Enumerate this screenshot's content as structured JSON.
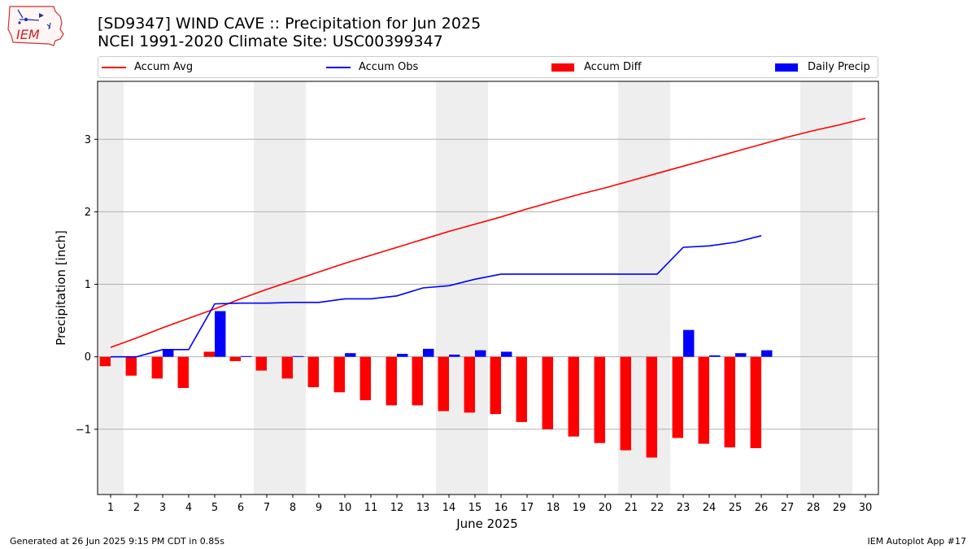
{
  "header": {
    "title_line1": "[SD9347] WIND CAVE :: Precipitation for Jun 2025",
    "title_line2": "NCEI 1991-2020 Climate Site: USC00399347"
  },
  "logo": {
    "text": "IEM"
  },
  "footer": {
    "generated": "Generated at 26 Jun 2025 9:15 PM CDT in 0.85s",
    "app": "IEM Autoplot App #17"
  },
  "colors": {
    "accum_avg": "#ff0000",
    "accum_obs": "#0000ff",
    "accum_diff": "#ff0000",
    "daily_precip": "#0000ff",
    "weekend_shade": "#eeeeee",
    "grid": "#b0b0b0"
  },
  "chart_data": {
    "type": "bar",
    "xlabel": "June 2025",
    "ylabel": "Precipitation [inch]",
    "ylim": [
      -1.9,
      3.8
    ],
    "yticks": [
      -1,
      0,
      1,
      2,
      3
    ],
    "ytick_labels": [
      "−1",
      "0",
      "1",
      "2",
      "3"
    ],
    "xlim": [
      0.5,
      30.5
    ],
    "days": [
      1,
      2,
      3,
      4,
      5,
      6,
      7,
      8,
      9,
      10,
      11,
      12,
      13,
      14,
      15,
      16,
      17,
      18,
      19,
      20,
      21,
      22,
      23,
      24,
      25,
      26,
      27,
      28,
      29,
      30
    ],
    "weekend_shading": [
      [
        0.5,
        1.5
      ],
      [
        6.5,
        8.5
      ],
      [
        13.5,
        15.5
      ],
      [
        20.5,
        22.5
      ],
      [
        27.5,
        29.5
      ]
    ],
    "grid": "horizontal",
    "legend_position": "top",
    "series": [
      {
        "name": "Accum Avg",
        "kind": "line",
        "x": [
          1,
          2,
          3,
          4,
          5,
          6,
          7,
          8,
          9,
          10,
          11,
          12,
          13,
          14,
          15,
          16,
          17,
          18,
          19,
          20,
          21,
          22,
          23,
          24,
          25,
          26,
          27,
          28,
          29,
          30
        ],
        "values": [
          0.13,
          0.26,
          0.4,
          0.53,
          0.66,
          0.8,
          0.93,
          1.05,
          1.17,
          1.29,
          1.4,
          1.51,
          1.62,
          1.73,
          1.83,
          1.93,
          2.04,
          2.14,
          2.24,
          2.33,
          2.43,
          2.53,
          2.63,
          2.73,
          2.83,
          2.93,
          3.03,
          3.12,
          3.2,
          3.29
        ]
      },
      {
        "name": "Accum Obs",
        "kind": "line",
        "x": [
          1,
          2,
          3,
          4,
          5,
          6,
          7,
          8,
          9,
          10,
          11,
          12,
          13,
          14,
          15,
          16,
          17,
          18,
          19,
          20,
          21,
          22,
          23,
          24,
          25,
          26
        ],
        "values": [
          0.0,
          0.0,
          0.1,
          0.1,
          0.73,
          0.74,
          0.74,
          0.75,
          0.75,
          0.8,
          0.8,
          0.84,
          0.95,
          0.98,
          1.07,
          1.14,
          1.14,
          1.14,
          1.14,
          1.14,
          1.14,
          1.14,
          1.51,
          1.53,
          1.58,
          1.67
        ]
      },
      {
        "name": "Accum Diff",
        "kind": "bar",
        "x": [
          1,
          2,
          3,
          4,
          5,
          6,
          7,
          8,
          9,
          10,
          11,
          12,
          13,
          14,
          15,
          16,
          17,
          18,
          19,
          20,
          21,
          22,
          23,
          24,
          25,
          26
        ],
        "values": [
          -0.13,
          -0.26,
          -0.3,
          -0.43,
          0.07,
          -0.06,
          -0.19,
          -0.3,
          -0.42,
          -0.49,
          -0.6,
          -0.67,
          -0.67,
          -0.75,
          -0.77,
          -0.79,
          -0.9,
          -1.0,
          -1.1,
          -1.19,
          -1.29,
          -1.39,
          -1.12,
          -1.2,
          -1.25,
          -1.26
        ]
      },
      {
        "name": "Daily Precip",
        "kind": "bar",
        "x": [
          1,
          2,
          3,
          4,
          5,
          6,
          7,
          8,
          9,
          10,
          11,
          12,
          13,
          14,
          15,
          16,
          17,
          18,
          19,
          20,
          21,
          22,
          23,
          24,
          25,
          26
        ],
        "values": [
          0.0,
          0.0,
          0.1,
          0.0,
          0.63,
          0.01,
          0.0,
          0.01,
          0.0,
          0.05,
          0.0,
          0.04,
          0.11,
          0.03,
          0.09,
          0.07,
          0.0,
          0.0,
          0.0,
          0.0,
          0.0,
          0.0,
          0.37,
          0.02,
          0.05,
          0.09
        ]
      }
    ]
  }
}
